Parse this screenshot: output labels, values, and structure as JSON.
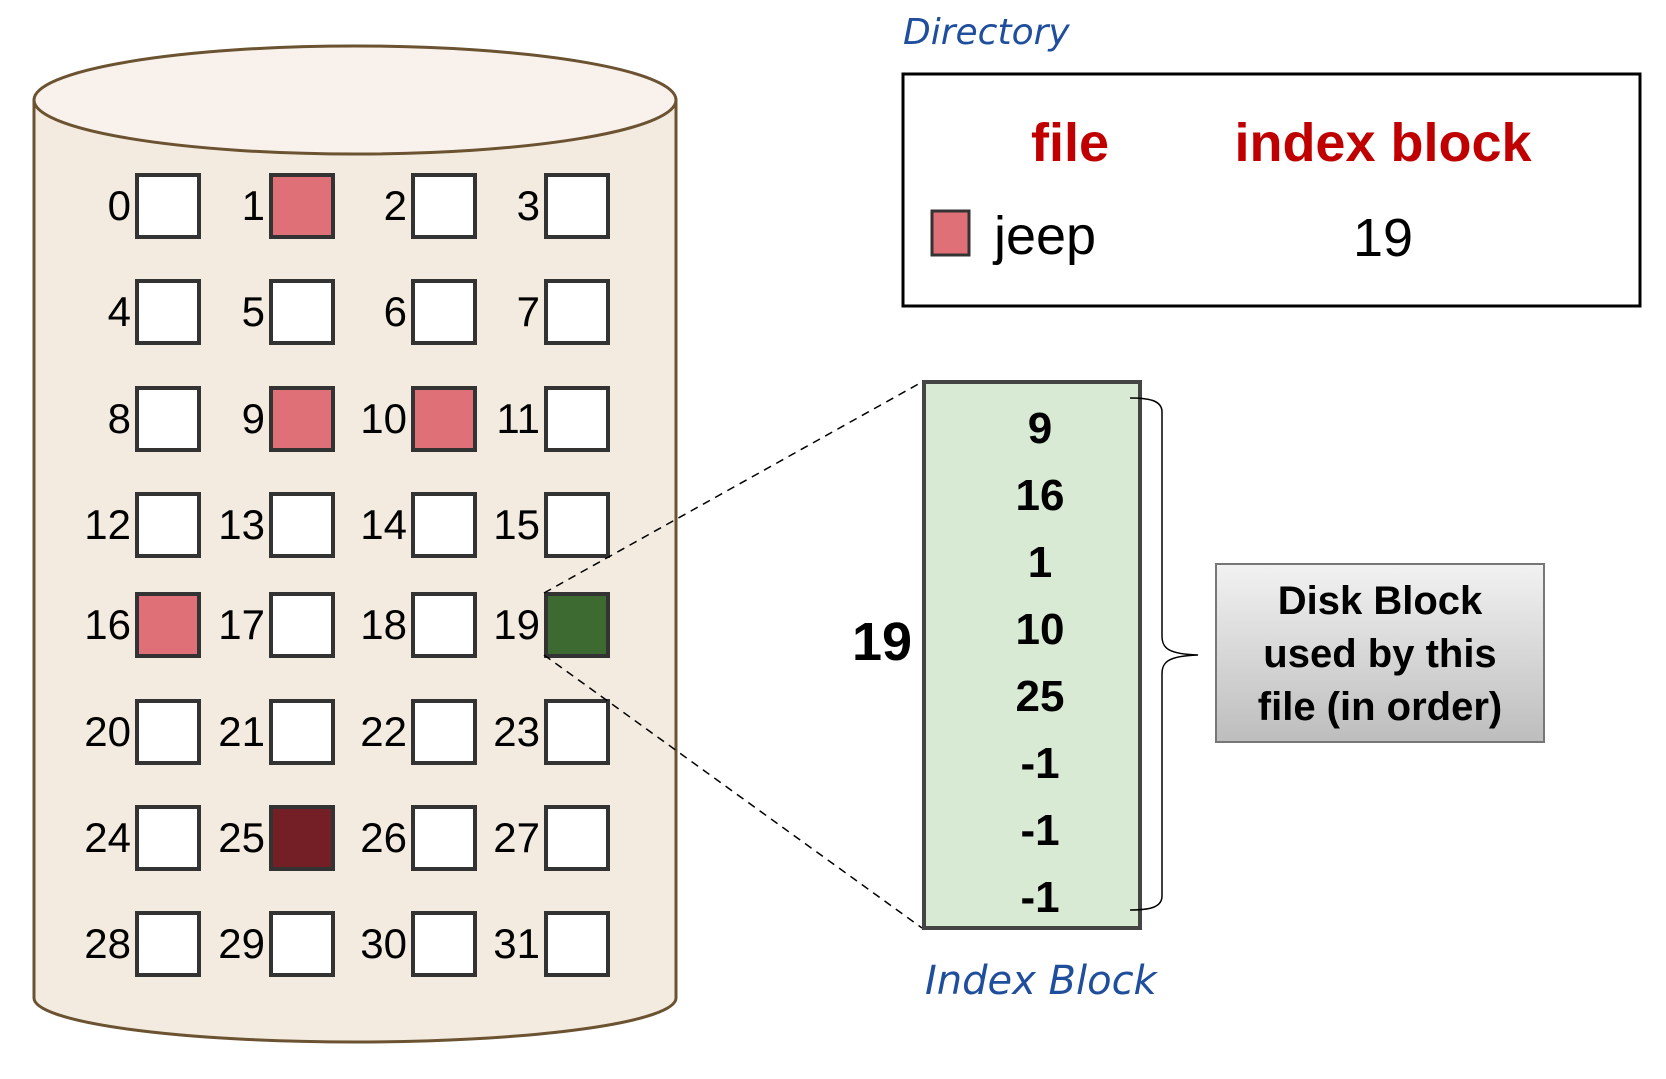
{
  "disk": {
    "blocks": [
      {
        "num": "0",
        "state": "free"
      },
      {
        "num": "1",
        "state": "file"
      },
      {
        "num": "2",
        "state": "free"
      },
      {
        "num": "3",
        "state": "free"
      },
      {
        "num": "4",
        "state": "free"
      },
      {
        "num": "5",
        "state": "free"
      },
      {
        "num": "6",
        "state": "free"
      },
      {
        "num": "7",
        "state": "free"
      },
      {
        "num": "8",
        "state": "free"
      },
      {
        "num": "9",
        "state": "file"
      },
      {
        "num": "10",
        "state": "file"
      },
      {
        "num": "11",
        "state": "free"
      },
      {
        "num": "12",
        "state": "free"
      },
      {
        "num": "13",
        "state": "free"
      },
      {
        "num": "14",
        "state": "free"
      },
      {
        "num": "15",
        "state": "free"
      },
      {
        "num": "16",
        "state": "file"
      },
      {
        "num": "17",
        "state": "free"
      },
      {
        "num": "18",
        "state": "free"
      },
      {
        "num": "19",
        "state": "index"
      },
      {
        "num": "20",
        "state": "free"
      },
      {
        "num": "21",
        "state": "free"
      },
      {
        "num": "22",
        "state": "free"
      },
      {
        "num": "23",
        "state": "free"
      },
      {
        "num": "24",
        "state": "free"
      },
      {
        "num": "25",
        "state": "last"
      },
      {
        "num": "26",
        "state": "free"
      },
      {
        "num": "27",
        "state": "free"
      },
      {
        "num": "28",
        "state": "free"
      },
      {
        "num": "29",
        "state": "free"
      },
      {
        "num": "30",
        "state": "free"
      },
      {
        "num": "31",
        "state": "free"
      }
    ]
  },
  "directory": {
    "label": "Directory",
    "header_file": "file",
    "header_index": "index block",
    "rows": [
      {
        "file": "jeep",
        "index_block": "19"
      }
    ]
  },
  "index_block": {
    "number": "19",
    "entries": [
      "9",
      "16",
      "1",
      "10",
      "25",
      "-1",
      "-1",
      "-1"
    ],
    "label": "Index Block"
  },
  "callout": {
    "lines": [
      "Disk Block",
      "used by this",
      "file (in order)"
    ]
  },
  "colors": {
    "cylinder_fill": "#f3ebdf",
    "cylinder_top": "#f8f1ec",
    "cylinder_stroke": "#6b5230",
    "file_block": "#e07078",
    "index_block": "#3c6a30",
    "last_block": "#741e26",
    "header_red": "#c00000",
    "index_fill": "#d8ead3",
    "handwriting": "#1f4e9c"
  }
}
